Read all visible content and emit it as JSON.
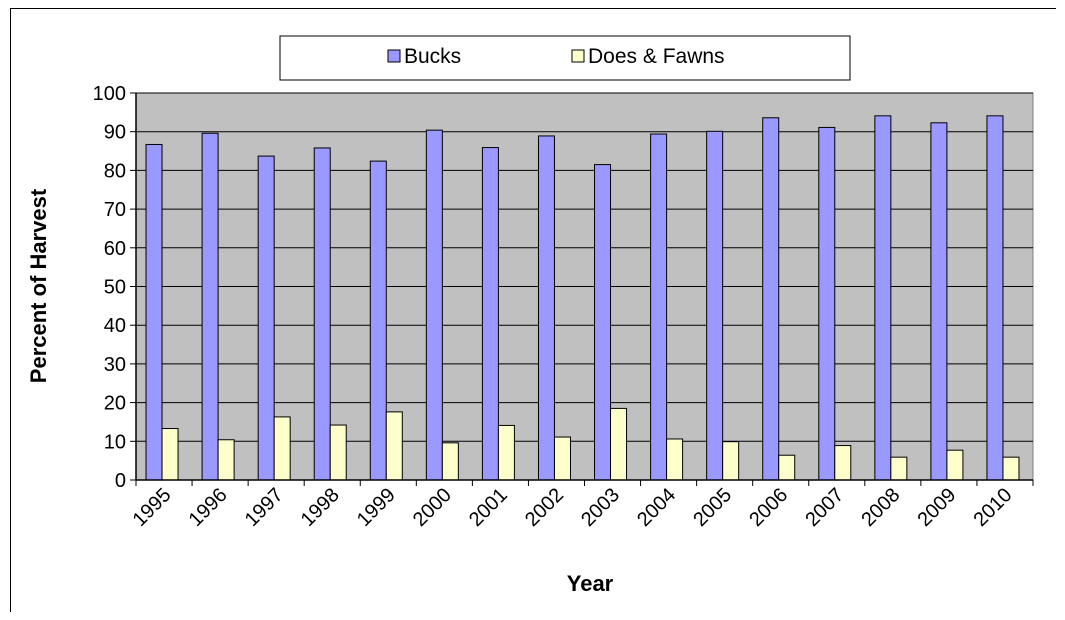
{
  "chart_data": {
    "type": "bar",
    "title": "",
    "xlabel": "Year",
    "ylabel": "Percent of Harvest",
    "ylim": [
      0,
      100
    ],
    "yticks": [
      0,
      10,
      20,
      30,
      40,
      50,
      60,
      70,
      80,
      90,
      100
    ],
    "grid": true,
    "legend_position": "top",
    "categories": [
      "1995",
      "1996",
      "1997",
      "1998",
      "1999",
      "2000",
      "2001",
      "2002",
      "2003",
      "2004",
      "2005",
      "2006",
      "2007",
      "2008",
      "2009",
      "2010"
    ],
    "series": [
      {
        "name": "Bucks",
        "color": "#9999ff",
        "values": [
          86.7,
          89.6,
          83.7,
          85.8,
          82.4,
          90.4,
          85.9,
          88.9,
          81.5,
          89.4,
          90.1,
          93.6,
          91.1,
          94.1,
          92.3,
          94.1
        ]
      },
      {
        "name": "Does & Fawns",
        "color": "#ffffcc",
        "values": [
          13.3,
          10.4,
          16.3,
          14.2,
          17.6,
          9.6,
          14.1,
          11.1,
          18.5,
          10.6,
          9.9,
          6.4,
          8.9,
          5.9,
          7.7,
          5.9
        ]
      }
    ],
    "plot_background": "#c0c0c0"
  }
}
